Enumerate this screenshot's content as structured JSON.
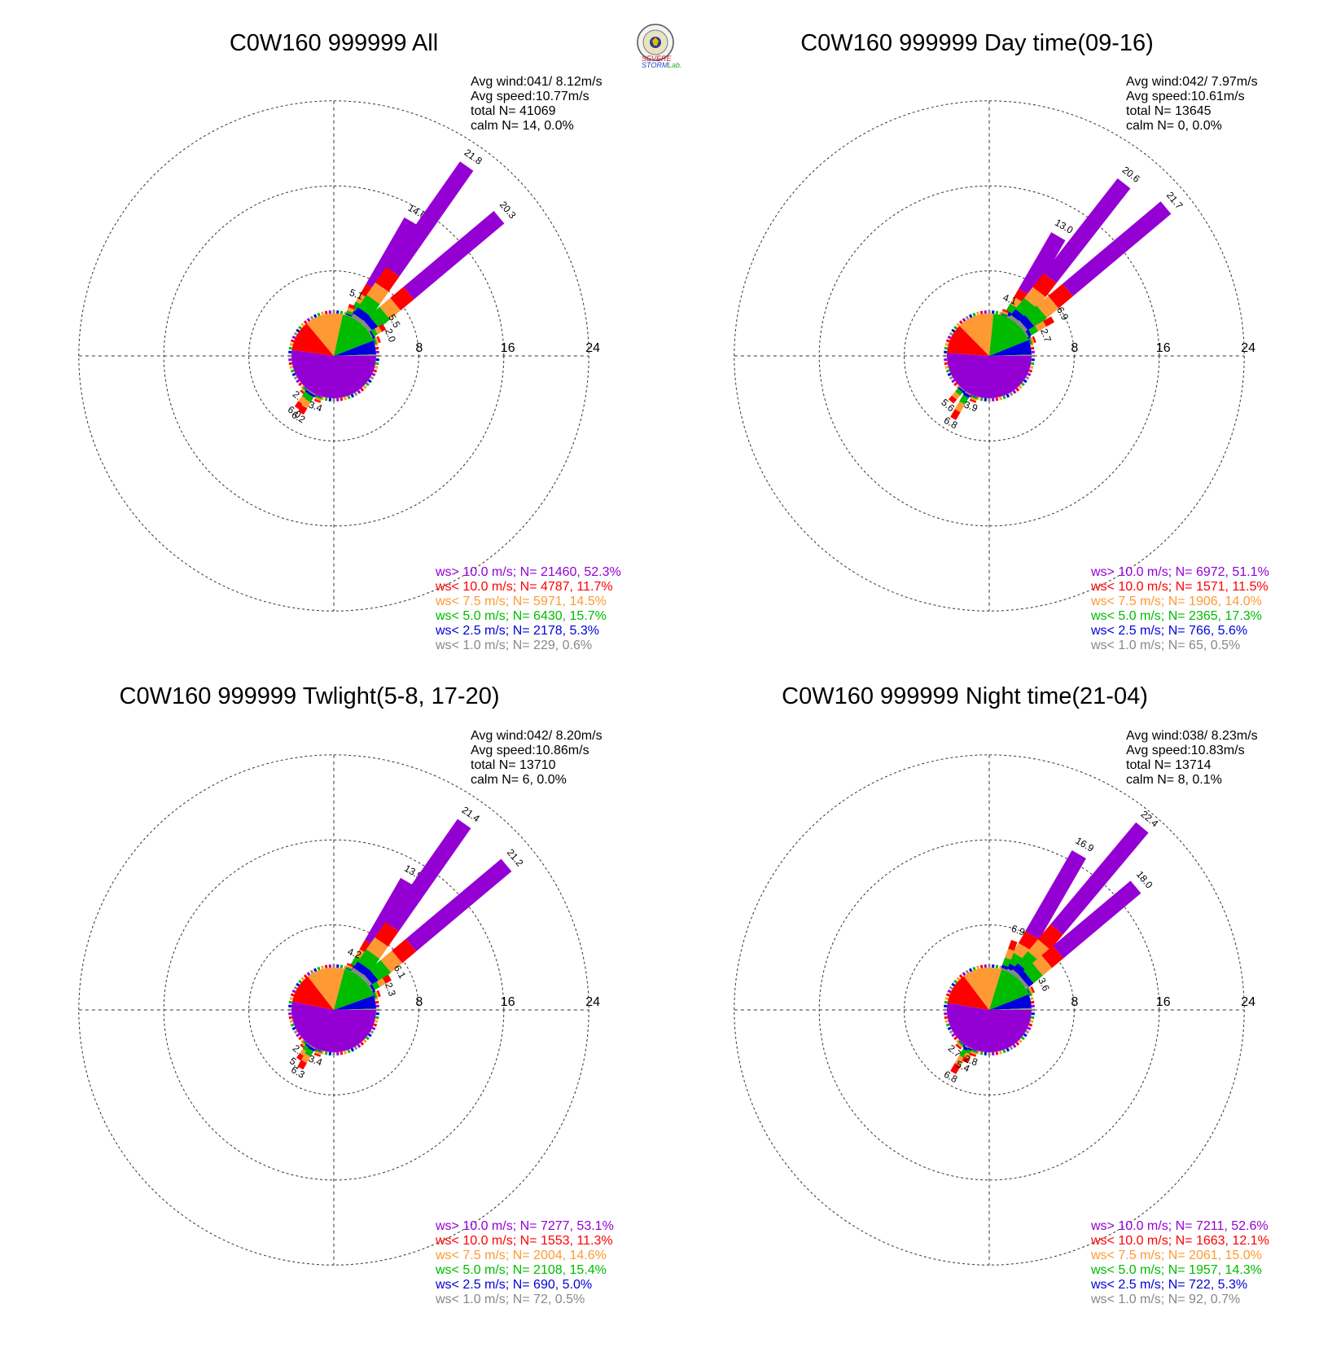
{
  "logo": {
    "text_a": "SEVERE",
    "text_b": "STORM",
    "text_c": "Lab."
  },
  "chart_data": [
    {
      "type": "windrose",
      "title": "C0W160 999999 All",
      "rings": [
        "8",
        "16",
        "24"
      ],
      "stats": {
        "avg_wind": "Avg wind:041/ 8.12m/s",
        "avg_speed": "Avg speed:10.77m/s",
        "total": "total N=      41069",
        "calm": "calm N=     14,   0.0%"
      },
      "labeled_directions": [
        {
          "dir": 30,
          "value": 14.6
        },
        {
          "dir": 35,
          "value": 21.8
        },
        {
          "dir": 50,
          "value": 20.3
        },
        {
          "dir": 20,
          "value": 5.1
        },
        {
          "dir": 60,
          "value": 5.5
        },
        {
          "dir": 70,
          "value": 2.0
        },
        {
          "dir": 220,
          "value": 2.3
        },
        {
          "dir": 215,
          "value": 6.0
        },
        {
          "dir": 210,
          "value": 6.2
        },
        {
          "dir": 200,
          "value": 3.4
        }
      ],
      "legend": [
        {
          "label": "ws> 10.0 m/s; N=  21460, 52.3%",
          "color": "#9400d3"
        },
        {
          "label": "ws< 10.0 m/s; N=  4787, 11.7%",
          "color": "#ff0000"
        },
        {
          "label": "ws<  7.5 m/s; N=  5971, 14.5%",
          "color": "#ff9933"
        },
        {
          "label": "ws<  5.0 m/s; N=  6430, 15.7%",
          "color": "#00bb00"
        },
        {
          "label": "ws<  2.5 m/s; N=  2178,  5.3%",
          "color": "#0000dd"
        },
        {
          "label": "ws<  1.0 m/s; N=    229,  0.6%",
          "color": "#888888"
        }
      ],
      "pie": [
        52.3,
        11.7,
        14.5,
        15.7,
        5.3,
        0.6
      ]
    },
    {
      "type": "windrose",
      "title": "C0W160 999999 Day time(09-16)",
      "rings": [
        "8",
        "16",
        "24"
      ],
      "stats": {
        "avg_wind": "Avg wind:042/ 7.97m/s",
        "avg_speed": "Avg speed:10.61m/s",
        "total": "total N=      13645",
        "calm": "calm N=      0,   0.0%"
      },
      "labeled_directions": [
        {
          "dir": 30,
          "value": 13.0
        },
        {
          "dir": 38,
          "value": 20.6
        },
        {
          "dir": 50,
          "value": 21.7
        },
        {
          "dir": 20,
          "value": 4.1
        },
        {
          "dir": 60,
          "value": 6.9
        },
        {
          "dir": 70,
          "value": 2.7
        },
        {
          "dir": 220,
          "value": 5.6
        },
        {
          "dir": 210,
          "value": 6.8
        },
        {
          "dir": 200,
          "value": 3.9
        }
      ],
      "legend": [
        {
          "label": "ws> 10.0 m/s; N=  6972, 51.1%",
          "color": "#9400d3"
        },
        {
          "label": "ws< 10.0 m/s; N=  1571, 11.5%",
          "color": "#ff0000"
        },
        {
          "label": "ws<  7.5 m/s; N=  1906, 14.0%",
          "color": "#ff9933"
        },
        {
          "label": "ws<  5.0 m/s; N=  2365, 17.3%",
          "color": "#00bb00"
        },
        {
          "label": "ws<  2.5 m/s; N=    766,  5.6%",
          "color": "#0000dd"
        },
        {
          "label": "ws<  1.0 m/s; N=      65,  0.5%",
          "color": "#888888"
        }
      ],
      "pie": [
        51.1,
        11.5,
        14.0,
        17.3,
        5.6,
        0.5
      ]
    },
    {
      "type": "windrose",
      "title": "C0W160 999999 Twlight(5-8, 17-20)",
      "rings": [
        "8",
        "16",
        "24"
      ],
      "stats": {
        "avg_wind": "Avg wind:042/ 8.20m/s",
        "avg_speed": "Avg speed:10.86m/s",
        "total": "total N=      13710",
        "calm": "calm N=      6,   0.0%"
      },
      "labeled_directions": [
        {
          "dir": 30,
          "value": 13.9
        },
        {
          "dir": 35,
          "value": 21.4
        },
        {
          "dir": 50,
          "value": 21.2
        },
        {
          "dir": 20,
          "value": 4.2
        },
        {
          "dir": 60,
          "value": 6.1
        },
        {
          "dir": 70,
          "value": 2.3
        },
        {
          "dir": 220,
          "value": 2.4
        },
        {
          "dir": 215,
          "value": 5.7
        },
        {
          "dir": 210,
          "value": 6.3
        },
        {
          "dir": 200,
          "value": 3.4
        }
      ],
      "legend": [
        {
          "label": "ws> 10.0 m/s; N=  7277, 53.1%",
          "color": "#9400d3"
        },
        {
          "label": "ws< 10.0 m/s; N=  1553, 11.3%",
          "color": "#ff0000"
        },
        {
          "label": "ws<  7.5 m/s; N=  2004, 14.6%",
          "color": "#ff9933"
        },
        {
          "label": "ws<  5.0 m/s; N=  2108, 15.4%",
          "color": "#00bb00"
        },
        {
          "label": "ws<  2.5 m/s; N=    690,  5.0%",
          "color": "#0000dd"
        },
        {
          "label": "ws<  1.0 m/s; N=      72,  0.5%",
          "color": "#888888"
        }
      ],
      "pie": [
        53.1,
        11.3,
        14.6,
        15.4,
        5.0,
        0.5
      ]
    },
    {
      "type": "windrose",
      "title": "C0W160 999999 Night time(21-04)",
      "rings": [
        "8",
        "16",
        "24"
      ],
      "stats": {
        "avg_wind": "Avg wind:038/ 8.23m/s",
        "avg_speed": "Avg speed:10.83m/s",
        "total": "total N=      13714",
        "calm": "calm N=      8,   0.1%"
      },
      "labeled_directions": [
        {
          "dir": 30,
          "value": 16.9
        },
        {
          "dir": 40,
          "value": 22.4
        },
        {
          "dir": 50,
          "value": 18.0
        },
        {
          "dir": 20,
          "value": 6.9
        },
        {
          "dir": 65,
          "value": 3.6
        },
        {
          "dir": 220,
          "value": 2.7
        },
        {
          "dir": 210,
          "value": 6.8
        },
        {
          "dir": 205,
          "value": 5.4
        },
        {
          "dir": 200,
          "value": 2.8
        }
      ],
      "legend": [
        {
          "label": "ws> 10.0 m/s; N=  7211, 52.6%",
          "color": "#9400d3"
        },
        {
          "label": "ws< 10.0 m/s; N=  1663, 12.1%",
          "color": "#ff0000"
        },
        {
          "label": "ws<  7.5 m/s; N=  2061, 15.0%",
          "color": "#ff9933"
        },
        {
          "label": "ws<  5.0 m/s; N=  1957, 14.3%",
          "color": "#00bb00"
        },
        {
          "label": "ws<  2.5 m/s; N=    722,  5.3%",
          "color": "#0000dd"
        },
        {
          "label": "ws<  1.0 m/s; N=      92,  0.7%",
          "color": "#888888"
        }
      ],
      "pie": [
        52.6,
        12.1,
        15.0,
        14.3,
        5.3,
        0.7
      ]
    }
  ]
}
